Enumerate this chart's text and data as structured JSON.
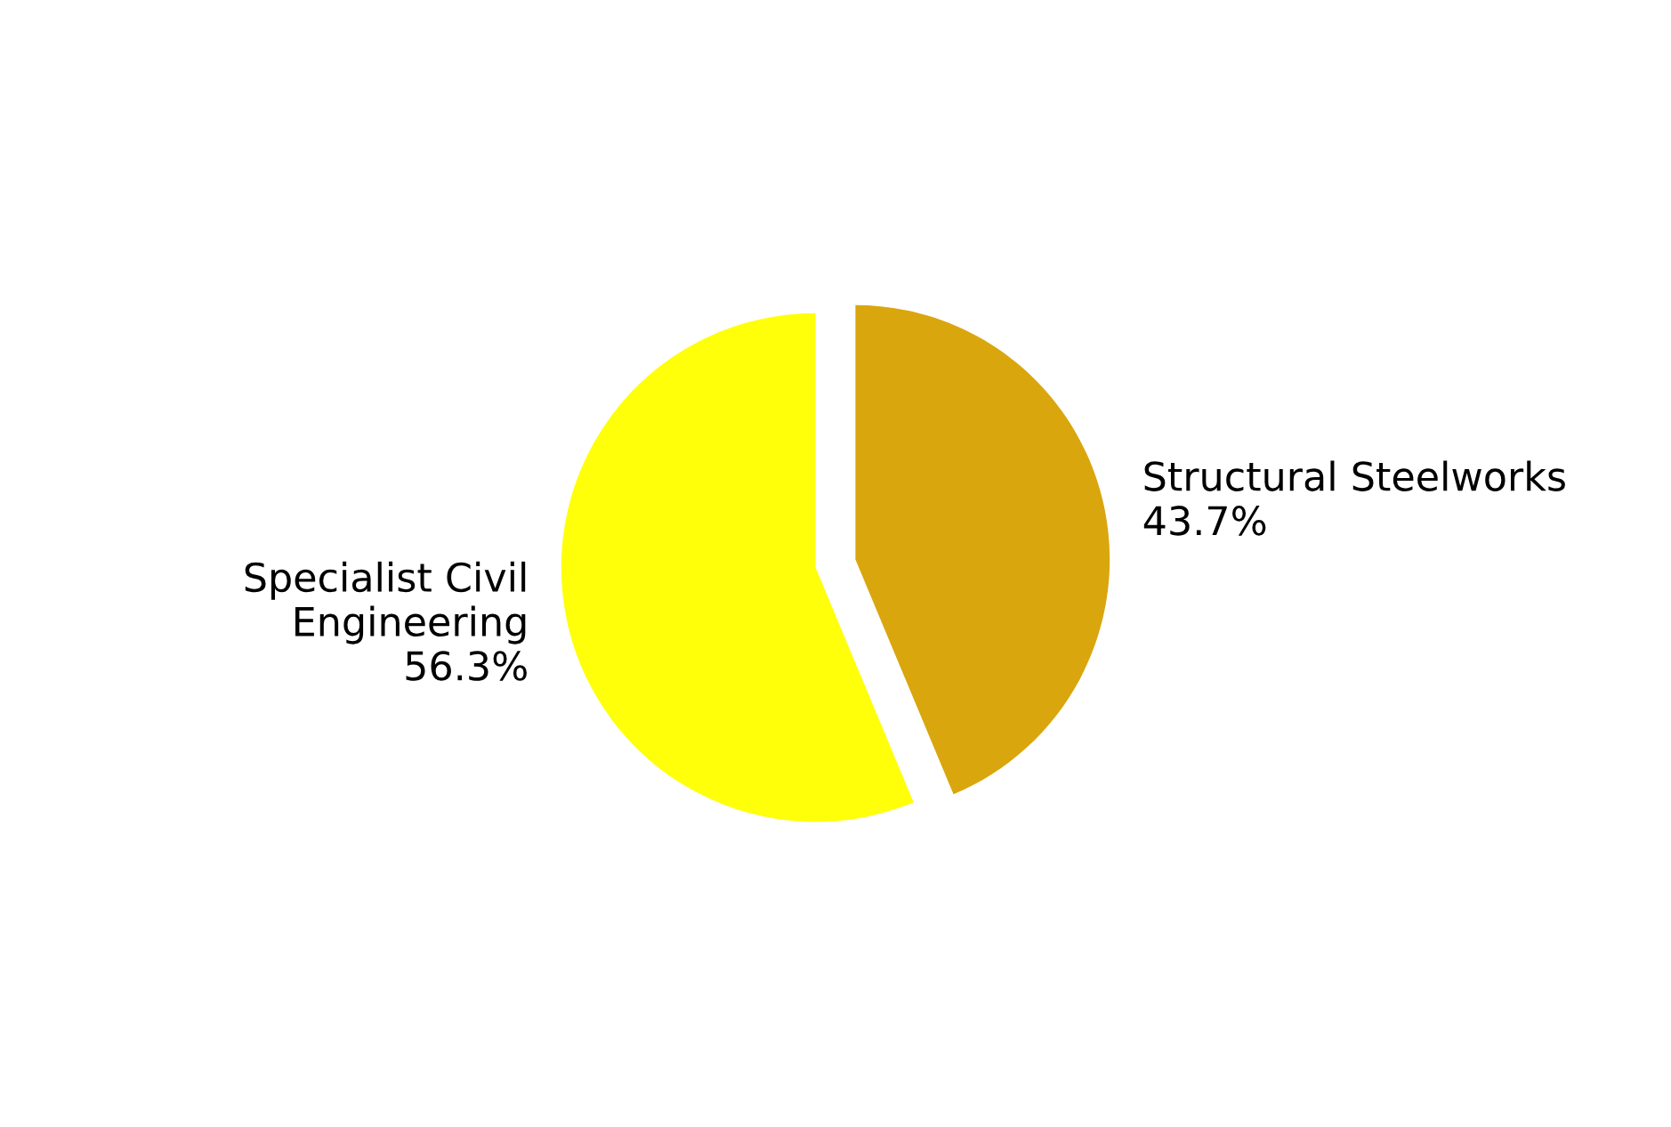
{
  "chart_data": {
    "type": "pie",
    "categories": [
      "Structural Steelworks",
      "Specialist Civil\nEngineering"
    ],
    "values": [
      43.7,
      56.3
    ],
    "value_labels": [
      "43.7%",
      "56.3%"
    ],
    "colors": [
      "#daa60e",
      "#ffff0a"
    ]
  }
}
